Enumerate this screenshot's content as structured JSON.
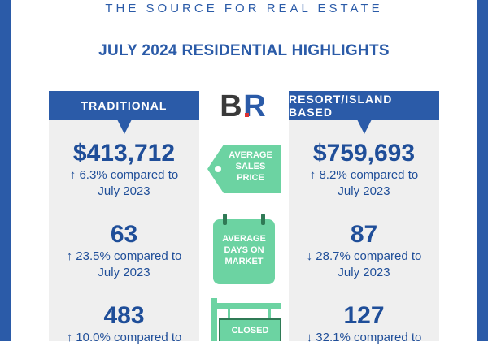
{
  "header": {
    "tagline": "THE SOURCE FOR REAL ESTATE",
    "title": "JULY 2024 RESIDENTIAL HIGHLIGHTS"
  },
  "logo": {
    "letters": [
      "B",
      "R"
    ]
  },
  "columns": [
    {
      "heading": "TRADITIONAL",
      "metrics": [
        {
          "value": "$413,712",
          "change": "↑ 6.3% compared to",
          "period": "July 2023"
        },
        {
          "value": "63",
          "change": "↑ 23.5% compared to",
          "period": "July 2023"
        },
        {
          "value": "483",
          "change": "↑ 10.0% compared to"
        }
      ]
    },
    {
      "heading": "RESORT/ISLAND BASED",
      "metrics": [
        {
          "value": "$759,693",
          "change": "↑ 8.2% compared to",
          "period": "July 2023"
        },
        {
          "value": "87",
          "change": "↓ 28.7% compared to",
          "period": "July 2023"
        },
        {
          "value": "127",
          "change": "↓ 32.1% compared to"
        }
      ]
    }
  ],
  "labels": [
    "AVERAGE SALES PRICE",
    "AVERAGE DAYS ON MARKET",
    "CLOSED"
  ]
}
